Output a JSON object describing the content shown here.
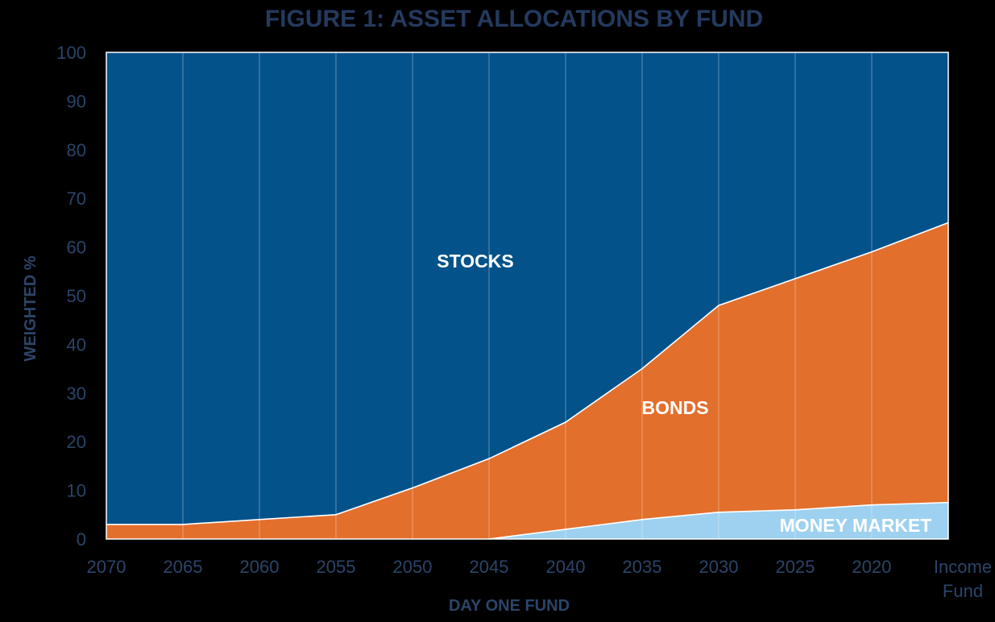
{
  "chart_data": {
    "type": "area",
    "stacked": true,
    "title": "FIGURE 1: ASSET ALLOCATIONS BY FUND",
    "xlabel": "DAY ONE FUND",
    "ylabel": "WEIGHTED %",
    "ylim": [
      0,
      100
    ],
    "yticks": [
      0,
      10,
      20,
      30,
      40,
      50,
      60,
      70,
      80,
      90,
      100
    ],
    "grid": "vertical",
    "categories": [
      "2070",
      "2065",
      "2060",
      "2055",
      "2050",
      "2045",
      "2040",
      "2035",
      "2030",
      "2025",
      "2020",
      "Income Fund"
    ],
    "series": [
      {
        "name": "MONEY MARKET",
        "color": "#9dd1ef",
        "values": [
          0,
          0,
          0,
          0,
          0,
          0,
          2,
          4,
          5.5,
          6,
          7,
          7.5
        ]
      },
      {
        "name": "BONDS",
        "color": "#e36f2c",
        "values": [
          3,
          3,
          4,
          5,
          10.5,
          16.5,
          22,
          31,
          42.5,
          47.5,
          52,
          57.5
        ]
      },
      {
        "name": "STOCKS",
        "color": "#04528a",
        "values": [
          97,
          97,
          96,
          95,
          89.5,
          83.5,
          76,
          65,
          52,
          46.5,
          41,
          35
        ]
      }
    ]
  }
}
